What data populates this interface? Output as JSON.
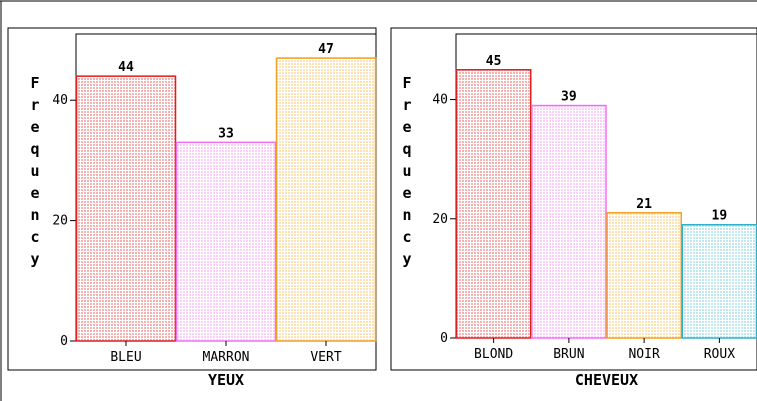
{
  "chart_data": [
    {
      "type": "bar",
      "xlabel": "YEUX",
      "ylabel": "Frequency",
      "categories": [
        "BLEU",
        "MARRON",
        "VERT"
      ],
      "values": [
        44,
        33,
        47
      ],
      "colors": [
        "#e02020",
        "#f070f0",
        "#f0a020"
      ],
      "fill_colors": [
        "#f6b2b2",
        "#fbd0fb",
        "#fde2b4"
      ],
      "ylim": [
        0,
        51
      ],
      "yticks": [
        0,
        20,
        40
      ],
      "grid": false
    },
    {
      "type": "bar",
      "xlabel": "CHEVEUX",
      "ylabel": "Frequency",
      "categories": [
        "BLOND",
        "BRUN",
        "NOIR",
        "ROUX"
      ],
      "values": [
        45,
        39,
        21,
        19
      ],
      "colors": [
        "#e02020",
        "#f070f0",
        "#f0a020",
        "#30b0c8"
      ],
      "fill_colors": [
        "#f6b2b2",
        "#fbd0fb",
        "#fde2b4",
        "#bfe8f0"
      ],
      "ylim": [
        0,
        51
      ],
      "yticks": [
        0,
        20,
        40
      ],
      "grid": false
    }
  ]
}
